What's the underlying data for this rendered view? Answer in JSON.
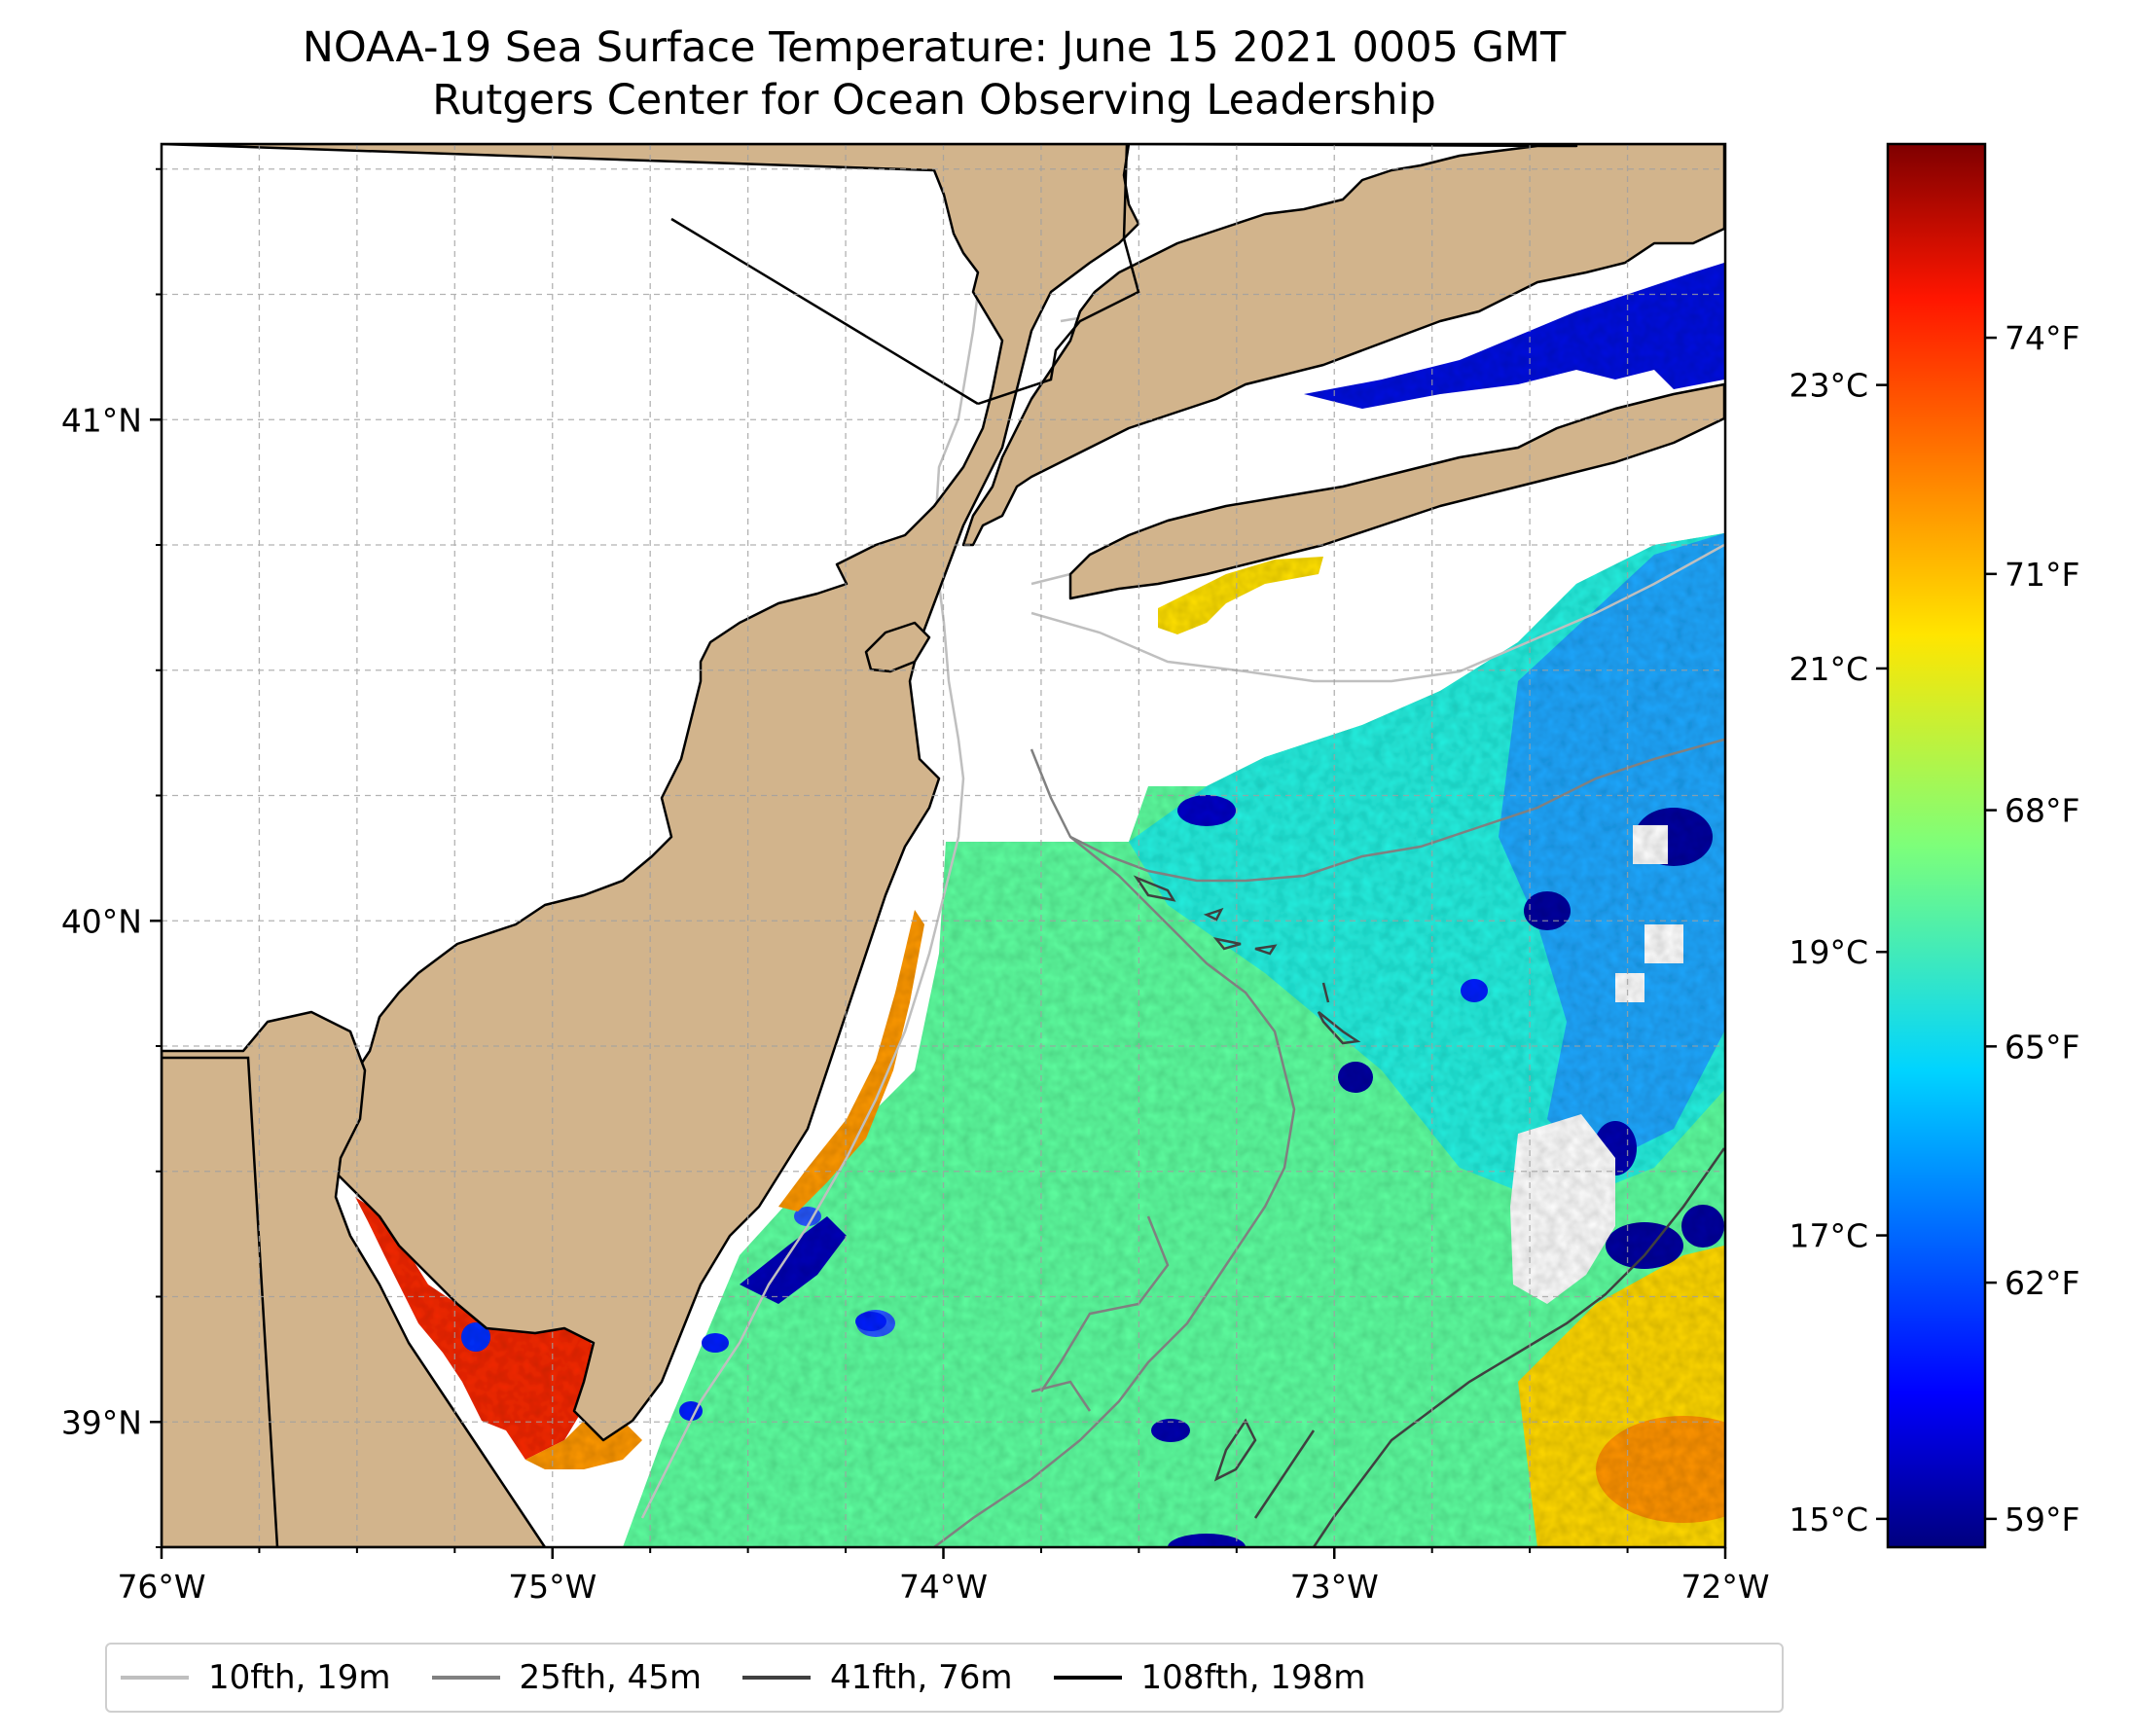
{
  "title": {
    "line1": "NOAA-19 Sea Surface Temperature: June 15 2021 0005 GMT",
    "line2": "Rutgers Center for Ocean Observing Leadership"
  },
  "map": {
    "lon_range": [
      -76,
      -72
    ],
    "lat_range": [
      38.75,
      41.55
    ],
    "lon_ticks": [
      "76°W",
      "75°W",
      "74°W",
      "73°W",
      "72°W"
    ],
    "lat_ticks": [
      "41°N",
      "40°N",
      "39°N"
    ],
    "land_color": "#d2b48c",
    "no_data_color": "#ffffff",
    "gridlines": true,
    "colormap": "jet"
  },
  "colorbar": {
    "range_c": [
      14.8,
      24.7
    ],
    "celsius_ticks": [
      "23°C",
      "21°C",
      "19°C",
      "17°C",
      "15°C"
    ],
    "fahrenheit_ticks": [
      "74°F",
      "71°F",
      "68°F",
      "65°F",
      "62°F",
      "59°F"
    ]
  },
  "legend": {
    "placement": "bottom",
    "items": [
      {
        "label": "10fth, 19m",
        "color": "#bfbfbf"
      },
      {
        "label": "25fth, 45m",
        "color": "#808080"
      },
      {
        "label": "41fth, 76m",
        "color": "#404040"
      },
      {
        "label": "108fth, 198m",
        "color": "#000000"
      }
    ]
  }
}
